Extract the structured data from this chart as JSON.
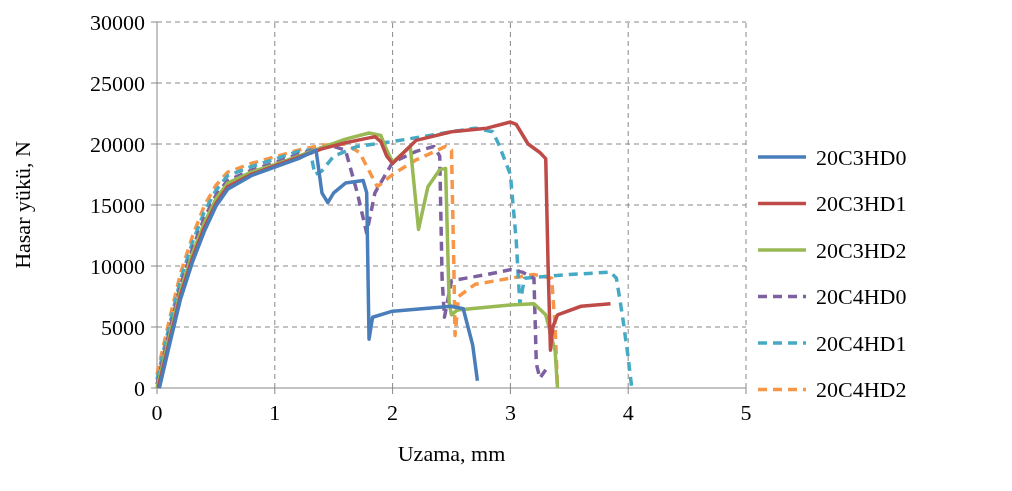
{
  "chart_data": {
    "type": "line",
    "xlabel": "Uzama, mm",
    "ylabel": "Hasar yükü, N",
    "xlim": [
      0,
      5
    ],
    "ylim": [
      0,
      30000
    ],
    "xticks": [
      0,
      1,
      2,
      3,
      4,
      5
    ],
    "yticks": [
      0,
      5000,
      10000,
      15000,
      20000,
      25000,
      30000
    ],
    "grid": true,
    "legend": "right",
    "marker": "none",
    "series": [
      {
        "name": "20C3HD0",
        "color": "#4a7ebb",
        "line_style": "solid",
        "x": [
          0.02,
          0.1,
          0.2,
          0.3,
          0.4,
          0.5,
          0.6,
          0.8,
          1.0,
          1.2,
          1.35,
          1.4,
          1.45,
          1.5,
          1.6,
          1.75,
          1.78,
          1.8,
          1.83,
          2.0,
          2.5,
          2.6,
          2.68,
          2.72
        ],
        "values": [
          0,
          3300,
          7300,
          10300,
          12800,
          14900,
          16300,
          17400,
          18100,
          18800,
          19500,
          16000,
          15200,
          16000,
          16800,
          17000,
          16000,
          4000,
          5800,
          6300,
          6700,
          6500,
          3500,
          600
        ]
      },
      {
        "name": "20C3HD1",
        "color": "#be4b48",
        "line_style": "solid",
        "x": [
          0.01,
          0.1,
          0.2,
          0.3,
          0.4,
          0.5,
          0.6,
          0.8,
          1.0,
          1.2,
          1.4,
          1.6,
          1.8,
          1.85,
          1.9,
          1.95,
          2.0,
          2.2,
          2.5,
          2.8,
          3.0,
          3.05,
          3.15,
          3.25,
          3.3,
          3.32,
          3.34,
          3.36,
          3.4,
          3.6,
          3.85
        ],
        "values": [
          0,
          3600,
          7600,
          10600,
          13100,
          15100,
          16500,
          17500,
          18200,
          18900,
          19600,
          20100,
          20500,
          20600,
          20200,
          19000,
          18400,
          20300,
          21000,
          21300,
          21800,
          21600,
          20000,
          19300,
          18800,
          10000,
          3100,
          5000,
          6000,
          6700,
          6900
        ]
      },
      {
        "name": "20C3HD2",
        "color": "#98b954",
        "line_style": "solid",
        "x": [
          0,
          0.1,
          0.2,
          0.3,
          0.4,
          0.5,
          0.6,
          0.8,
          1.0,
          1.2,
          1.4,
          1.6,
          1.8,
          1.9,
          1.95,
          2.0,
          2.15,
          2.22,
          2.3,
          2.4,
          2.45,
          2.48,
          2.5,
          2.55,
          3.0,
          3.2,
          3.3,
          3.38,
          3.4
        ],
        "values": [
          0,
          4000,
          8000,
          11000,
          13500,
          15500,
          16800,
          17700,
          18300,
          19000,
          19700,
          20400,
          20900,
          20700,
          19500,
          18500,
          19800,
          13000,
          16500,
          17900,
          18000,
          7000,
          6000,
          6400,
          6800,
          6900,
          6000,
          3000,
          0
        ]
      },
      {
        "name": "20C4HD0",
        "color": "#7d60a0",
        "line_style": "dashed",
        "x": [
          0,
          0.1,
          0.2,
          0.3,
          0.4,
          0.5,
          0.6,
          0.8,
          1.0,
          1.2,
          1.4,
          1.5,
          1.6,
          1.7,
          1.78,
          1.85,
          2.0,
          2.2,
          2.35,
          2.4,
          2.42,
          2.44,
          2.5,
          2.8,
          3.0,
          3.1,
          3.2,
          3.22,
          3.25,
          3.3
        ],
        "values": [
          300,
          4400,
          8400,
          11400,
          13900,
          15800,
          17000,
          17850,
          18450,
          19150,
          19700,
          19800,
          19500,
          16000,
          12700,
          16000,
          18500,
          19400,
          19800,
          19000,
          9000,
          5800,
          8800,
          9300,
          9700,
          9500,
          9000,
          2000,
          800,
          1500
        ]
      },
      {
        "name": "20C4HD1",
        "color": "#46aac5",
        "line_style": "dashed",
        "x": [
          0,
          0.1,
          0.2,
          0.3,
          0.4,
          0.5,
          0.6,
          0.8,
          1.0,
          1.2,
          1.3,
          1.34,
          1.4,
          1.5,
          1.7,
          2.0,
          2.5,
          2.7,
          2.85,
          2.9,
          3.0,
          3.05,
          3.08,
          3.12,
          3.5,
          3.85,
          3.9,
          3.95,
          4.0,
          4.03
        ],
        "values": [
          700,
          4900,
          8900,
          11900,
          14400,
          16200,
          17400,
          18150,
          18750,
          19400,
          19500,
          17500,
          17800,
          19000,
          19800,
          20200,
          21000,
          21300,
          21000,
          20000,
          17500,
          12000,
          6900,
          9000,
          9300,
          9500,
          9000,
          6000,
          2500,
          0
        ]
      },
      {
        "name": "20C4HD2",
        "color": "#f79646",
        "line_style": "dashed",
        "x": [
          0,
          0.1,
          0.2,
          0.3,
          0.4,
          0.5,
          0.6,
          0.8,
          1.0,
          1.2,
          1.4,
          1.6,
          1.72,
          1.87,
          2.0,
          2.2,
          2.45,
          2.5,
          2.52,
          2.53,
          2.56,
          2.7,
          3.0,
          3.2,
          3.35,
          3.38,
          3.4
        ],
        "values": [
          1100,
          5400,
          9400,
          12400,
          14900,
          16600,
          17700,
          18400,
          18950,
          19500,
          19900,
          20000,
          19300,
          16500,
          17500,
          18700,
          19800,
          19500,
          10000,
          4300,
          7500,
          8500,
          9000,
          9300,
          9000,
          5000,
          0
        ]
      }
    ]
  }
}
